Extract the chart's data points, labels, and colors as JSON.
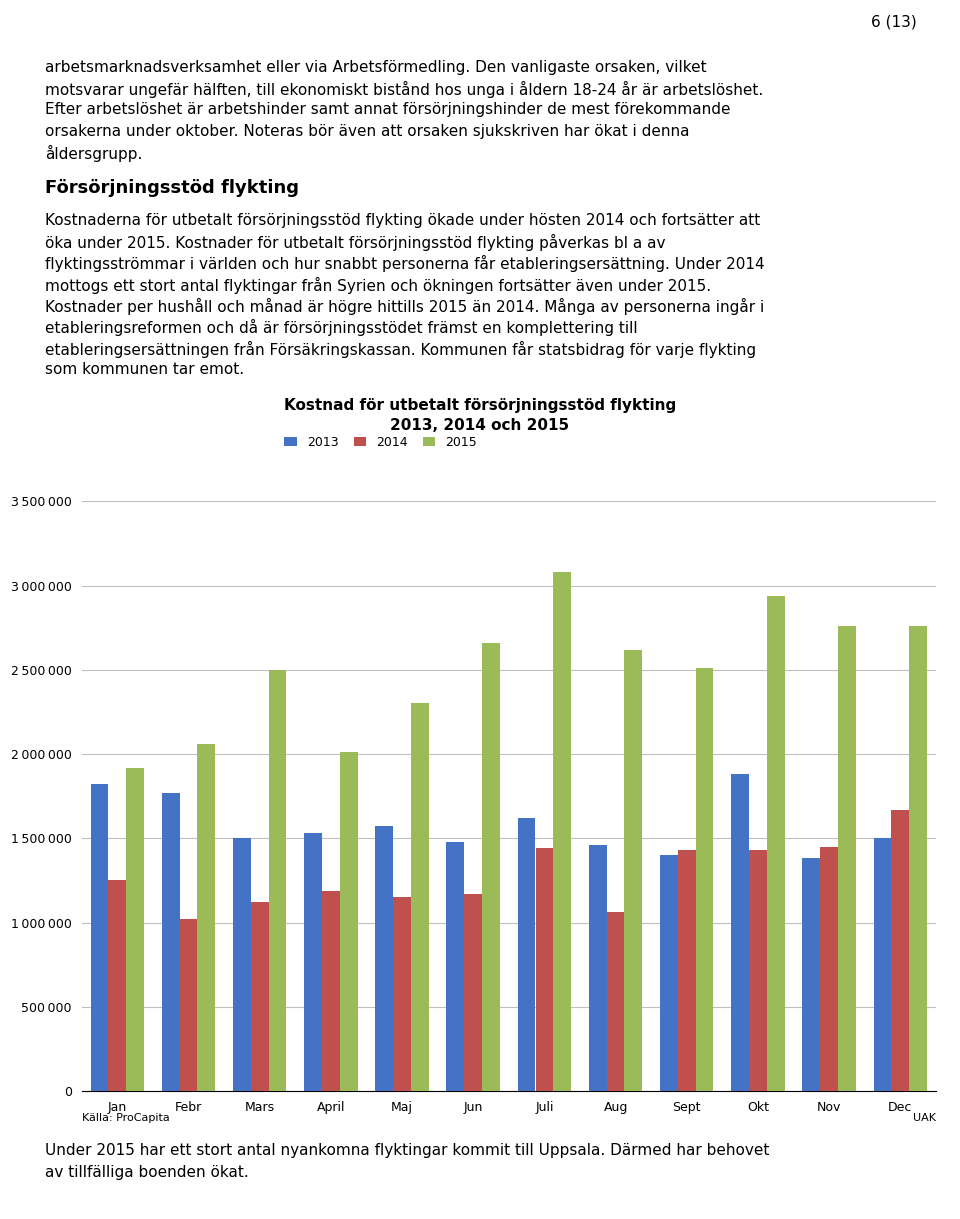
{
  "title_line1": "Kostnad för utbetalt försörjningsstöd flykting",
  "title_line2": "2013, 2014 och 2015",
  "months": [
    "Jan",
    "Febr",
    "Mars",
    "April",
    "Maj",
    "Jun",
    "Juli",
    "Aug",
    "Sept",
    "Okt",
    "Nov",
    "Dec"
  ],
  "data_2013": [
    1820000,
    1770000,
    1500000,
    1530000,
    1570000,
    1480000,
    1620000,
    1460000,
    1400000,
    1880000,
    1380000,
    1500000
  ],
  "data_2014": [
    1250000,
    1020000,
    1120000,
    1190000,
    1150000,
    1170000,
    1440000,
    1060000,
    1430000,
    1430000,
    1450000,
    1670000
  ],
  "data_2015": [
    1920000,
    2060000,
    2500000,
    2010000,
    2300000,
    2660000,
    3080000,
    2620000,
    2510000,
    2940000,
    2760000,
    2760000
  ],
  "color_2013": "#4472C4",
  "color_2014": "#C0504D",
  "color_2015": "#9BBB59",
  "ylim": [
    0,
    3500000
  ],
  "yticks": [
    0,
    500000,
    1000000,
    1500000,
    2000000,
    2500000,
    3000000,
    3500000
  ],
  "source_left": "Källa: ProCapita",
  "source_right": "UAK",
  "background_color": "#ffffff",
  "grid_color": "#c0c0c0",
  "title_fontsize": 11,
  "tick_fontsize": 9,
  "legend_fontsize": 9,
  "body_fontsize": 11,
  "page_num": "6 (13)",
  "text_lines_top": [
    "arbetsmarknadsverksamhet eller via Arbetsförmedling. Den vanligaste orsaken, vilket",
    "motsvarar ungefär hälften, till ekonomiskt bistånd hos unga i åldern 18-24 år är arbetslöshet.",
    "Efter arbetslöshet är arbetshinder samt annat försörjningshinder de mest förekommande",
    "orsakerna under oktober. Noteras bör även att orsaken sjukskriven har ökat i denna",
    "åldersgrupp."
  ],
  "section_heading": "Försörjningsstöd flykting",
  "body_lines": [
    "Kostnaderna för utbetalt försörjningsstöd flykting ökade under hösten 2014 och fortsätter att",
    "öka under 2015. Kostnader för utbetalt försörjningsstöd flykting påverkas bl a av",
    "flyktingsströmmar i världen och hur snabbt personerna får etableringsersättning. Under 2014",
    "mottogs ett stort antal flyktingar från Syrien och ökningen fortsätter även under 2015.",
    "Kostnader per hushåll och månad är högre hittills 2015 än 2014. Många av personerna ingår i",
    "etableringsreformen och då är försörjningsstödet främst en komplettering till",
    "etableringsersättningen från Försäkringskassan. Kommunen får statsbidrag för varje flykting",
    "som kommunen tar emot."
  ],
  "bottom_lines": [
    "Under 2015 har ett stort antal nyankomna flyktingar kommit till Uppsala. Därmed har behovet",
    "av tillfälliga boenden ökat."
  ]
}
